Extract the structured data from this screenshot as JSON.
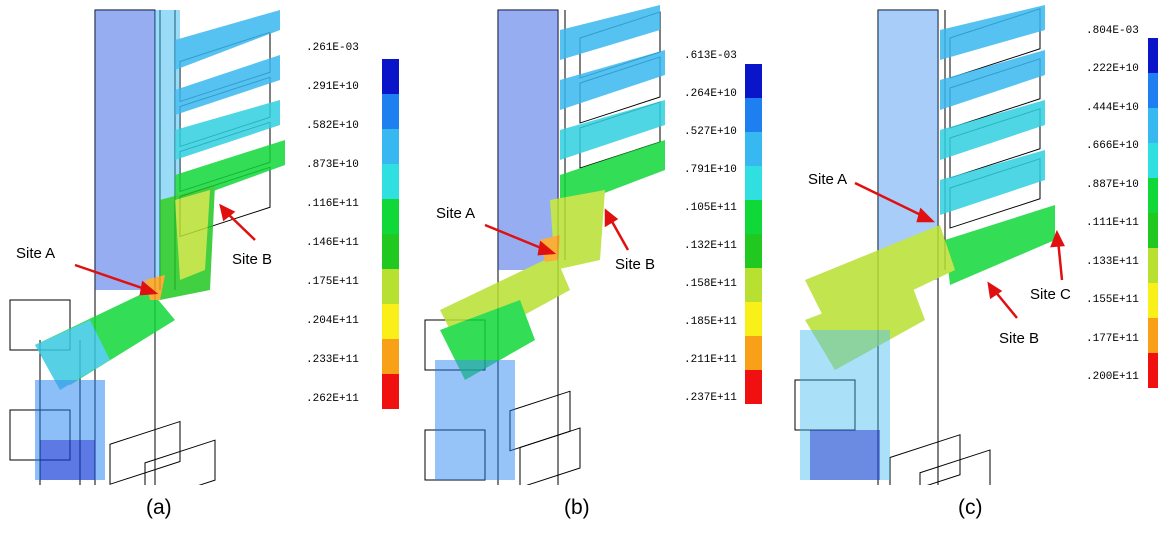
{
  "panels": [
    {
      "caption": "(a)",
      "legend": [
        ".261E-03",
        ".291E+10",
        ".582E+10",
        ".873E+10",
        ".116E+11",
        ".146E+11",
        ".175E+11",
        ".204E+11",
        ".233E+11",
        ".262E+11"
      ],
      "sites": [
        "Site A",
        "Site B"
      ]
    },
    {
      "caption": "(b)",
      "legend": [
        ".613E-03",
        ".264E+10",
        ".527E+10",
        ".791E+10",
        ".105E+11",
        ".132E+11",
        ".158E+11",
        ".185E+11",
        ".211E+11",
        ".237E+11"
      ],
      "sites": [
        "Site A",
        "Site B"
      ]
    },
    {
      "caption": "(c)",
      "legend": [
        ".804E-03",
        ".222E+10",
        ".444E+10",
        ".666E+10",
        ".887E+10",
        ".111E+11",
        ".133E+11",
        ".155E+11",
        ".177E+11",
        ".200E+11"
      ],
      "sites": [
        "Site A",
        "Site B",
        "Site C"
      ]
    }
  ],
  "colormap": [
    "#0a14c8",
    "#1e7ff0",
    "#38b8f0",
    "#30e0e0",
    "#10d838",
    "#20c820",
    "#b8e030",
    "#f8f018",
    "#f8a018",
    "#f01010"
  ],
  "arrow_color": "#e01010"
}
